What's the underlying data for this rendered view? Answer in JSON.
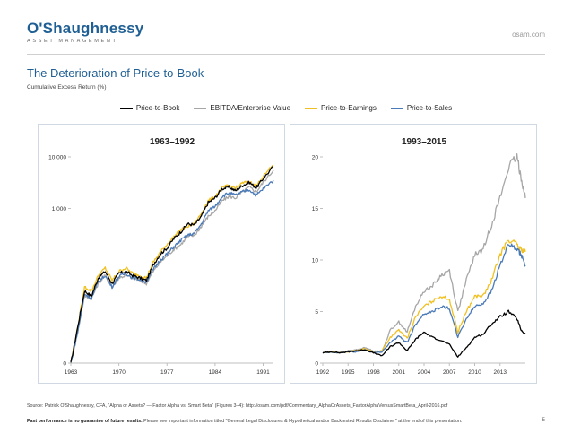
{
  "header": {
    "logo_main": "O'Shaughnessy",
    "logo_sub": "ASSET MANAGEMENT",
    "website": "osam.com"
  },
  "page": {
    "title": "The Deterioration of Price-to-Book",
    "subtitle": "Cumulative Excess Return (%)",
    "source": "Source: Patrick O'Shaughnessy, CFA, \"Alpha or Assets? — Factor Alpha vs. Smart Beta\" (Figures 3–4): http://osam.com/pdf/Commentary_AlphaOrAssets_FactorAlphaVersusSmartBeta_April-2016.pdf",
    "footer_bold": "Past performance is no guarantee of future results.",
    "footer_text": " Please see important information titled \"General Legal Disclosures & Hypothetical and/or Backtested Results Disclaimer\" at the end of this presentation.",
    "page_number": "5"
  },
  "legend": [
    {
      "label": "Price-to-Book",
      "color": "#000000"
    },
    {
      "label": "EBITDA/Enterprise Value",
      "color": "#a6a6a6"
    },
    {
      "label": "Price-to-Earnings",
      "color": "#f0c020"
    },
    {
      "label": "Price-to-Sales",
      "color": "#4a7ab8"
    }
  ],
  "chart_data": [
    {
      "type": "line",
      "title": "1963–1992",
      "yscale": "log",
      "ylim": [
        0,
        10000
      ],
      "yticks": [
        0,
        1000,
        10000
      ],
      "ytick_labels": [
        "0",
        "1,000",
        "10,000"
      ],
      "xlim": [
        1963,
        1992.5
      ],
      "xticks": [
        1963,
        1970,
        1977,
        1984,
        1991
      ],
      "xtick_labels": [
        "1963",
        "1970",
        "1977",
        "1984",
        "1991"
      ],
      "x": [
        1963,
        1964,
        1965,
        1966,
        1967,
        1968,
        1969,
        1970,
        1971,
        1972,
        1973,
        1974,
        1975,
        1976,
        1977,
        1978,
        1979,
        1980,
        1981,
        1982,
        1983,
        1984,
        1985,
        1986,
        1987,
        1988,
        1989,
        1990,
        1991,
        1992.5
      ],
      "series": [
        {
          "name": "Price-to-Book",
          "color": "#000000",
          "values": [
            1,
            5,
            25,
            20,
            45,
            60,
            35,
            55,
            60,
            50,
            45,
            40,
            80,
            130,
            170,
            260,
            350,
            500,
            480,
            700,
            1300,
            1600,
            2400,
            2600,
            2200,
            2800,
            3200,
            2500,
            3800,
            6500
          ]
        },
        {
          "name": "EBITDA/Enterprise Value",
          "color": "#a6a6a6",
          "values": [
            1,
            4,
            20,
            18,
            35,
            50,
            30,
            45,
            50,
            45,
            40,
            35,
            60,
            90,
            120,
            160,
            200,
            280,
            300,
            450,
            700,
            900,
            1400,
            1700,
            1600,
            2100,
            2600,
            2100,
            3200,
            5500
          ]
        },
        {
          "name": "Price-to-Earnings",
          "color": "#f0c020",
          "values": [
            1,
            5,
            30,
            25,
            50,
            70,
            40,
            60,
            70,
            55,
            50,
            45,
            90,
            140,
            200,
            280,
            380,
            450,
            500,
            800,
            1400,
            1700,
            2500,
            2800,
            2500,
            3100,
            3300,
            2700,
            4200,
            7000
          ]
        },
        {
          "name": "Price-to-Sales",
          "color": "#4a7ab8",
          "values": [
            1,
            4,
            22,
            18,
            38,
            50,
            30,
            48,
            55,
            45,
            42,
            38,
            65,
            100,
            130,
            180,
            240,
            300,
            330,
            500,
            900,
            1100,
            1700,
            2000,
            1800,
            2100,
            2300,
            1800,
            2400,
            3500
          ]
        }
      ]
    },
    {
      "type": "line",
      "title": "1993–2015",
      "yscale": "linear",
      "ylim": [
        0,
        20
      ],
      "yticks": [
        0,
        5,
        10,
        15,
        20
      ],
      "ytick_labels": [
        "0",
        "5",
        "10",
        "15",
        "20"
      ],
      "xlim": [
        1992,
        2016
      ],
      "xticks": [
        1992,
        1995,
        1998,
        2001,
        2004,
        2007,
        2010,
        2013
      ],
      "xtick_labels": [
        "1992",
        "1995",
        "1998",
        "2001",
        "2004",
        "2007",
        "2010",
        "2013"
      ],
      "x": [
        1992,
        1993,
        1994,
        1995,
        1996,
        1997,
        1998,
        1999,
        2000,
        2001,
        2002,
        2003,
        2004,
        2005,
        2006,
        2007,
        2008,
        2009,
        2010,
        2011,
        2012,
        2013,
        2014,
        2015,
        2015.5,
        2016
      ],
      "series": [
        {
          "name": "Price-to-Book",
          "color": "#000000",
          "values": [
            1.0,
            1.1,
            1.0,
            1.1,
            1.2,
            1.3,
            1.0,
            0.7,
            1.6,
            2.0,
            1.2,
            2.3,
            3.0,
            2.5,
            2.2,
            1.8,
            0.6,
            1.5,
            2.5,
            2.8,
            3.8,
            4.5,
            5.0,
            4.3,
            3.2,
            2.8
          ]
        },
        {
          "name": "EBITDA/Enterprise Value",
          "color": "#a6a6a6",
          "values": [
            1.0,
            1.1,
            1.0,
            1.2,
            1.3,
            1.5,
            1.2,
            1.1,
            3.2,
            4.0,
            3.0,
            5.5,
            7.0,
            7.5,
            8.5,
            9.0,
            5.0,
            8.0,
            10.5,
            11.0,
            13.5,
            16.0,
            19.0,
            20.0,
            18.0,
            16.0
          ]
        },
        {
          "name": "Price-to-Earnings",
          "color": "#f0c020",
          "values": [
            1.0,
            1.1,
            1.0,
            1.1,
            1.2,
            1.4,
            1.1,
            1.2,
            2.5,
            3.2,
            2.4,
            4.5,
            5.5,
            6.0,
            6.5,
            6.2,
            3.0,
            5.0,
            6.5,
            6.5,
            8.0,
            10.5,
            12.0,
            11.5,
            11.0,
            10.8
          ]
        },
        {
          "name": "Price-to-Sales",
          "color": "#4a7ab8",
          "values": [
            1.0,
            1.05,
            1.0,
            1.1,
            1.1,
            1.3,
            1.0,
            1.1,
            2.0,
            2.6,
            2.0,
            3.8,
            4.8,
            5.0,
            5.5,
            5.3,
            2.5,
            4.3,
            5.5,
            5.8,
            7.0,
            9.5,
            11.5,
            11.0,
            10.5,
            9.5
          ]
        }
      ]
    }
  ]
}
